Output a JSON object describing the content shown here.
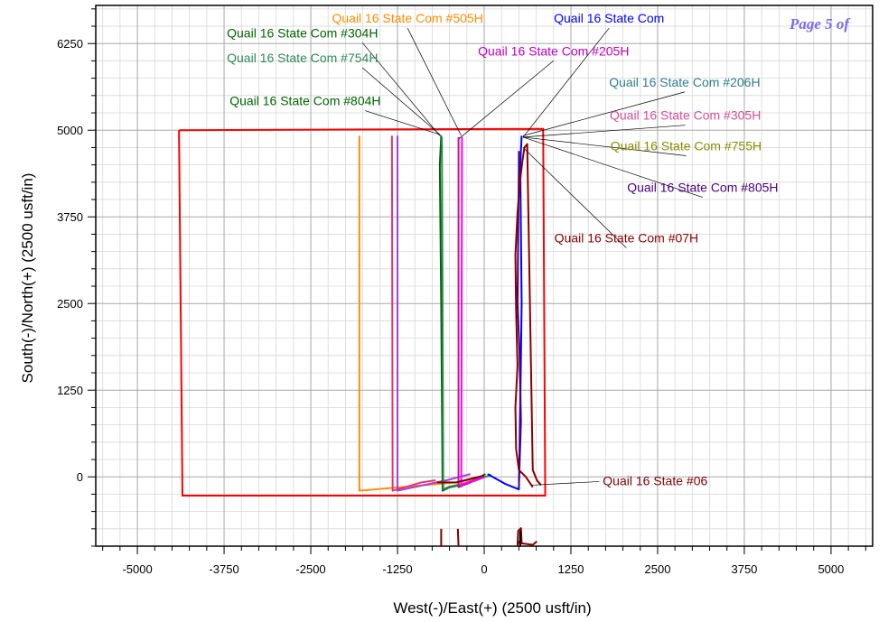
{
  "page_marker": "Page 5 of",
  "chart_data": {
    "type": "line",
    "title": "",
    "xlabel": "West(-)/East(+) (2500 usft/in)",
    "ylabel": "South(-)/North(+) (2500 usft/in)",
    "xlim": [
      -5600,
      5600
    ],
    "ylim": [
      -1000,
      6800
    ],
    "xticks": [
      -5000,
      -3750,
      -2500,
      -1250,
      0,
      1250,
      2500,
      3750,
      5000
    ],
    "yticks": [
      0,
      1250,
      2500,
      3750,
      5000,
      6250
    ],
    "xtick_labels": [
      "-5000",
      "-3750",
      "-2500",
      "-1250",
      "0",
      "1250",
      "2500",
      "3750",
      "5000"
    ],
    "ytick_labels": [
      "0",
      "1250",
      "2500",
      "3750",
      "5000",
      "6250"
    ],
    "minor_step": 250,
    "grid": true,
    "boundary": {
      "color": "#ff0000",
      "x": [
        -4400,
        850,
        880,
        -4350,
        -4400
      ],
      "y": [
        5000,
        5020,
        -270,
        -270,
        5000
      ]
    },
    "series": [
      {
        "color": "#ff8c00",
        "x": [
          0,
          -400,
          -1800,
          -1800
        ],
        "y": [
          0,
          -80,
          -200,
          4920
        ]
      },
      {
        "color": "#e8336b",
        "x": [
          -700,
          -900,
          -1320,
          -1330
        ],
        "y": [
          -50,
          -80,
          -200,
          4920
        ]
      },
      {
        "color": "#a040e0",
        "x": [
          -200,
          -500,
          -1250,
          -1250
        ],
        "y": [
          40,
          -40,
          -200,
          4920
        ]
      },
      {
        "color": "#006400",
        "x": [
          20,
          -250,
          -500,
          -600,
          -620,
          -640,
          -620
        ],
        "y": [
          40,
          -100,
          -150,
          -200,
          2500,
          4500,
          4920
        ]
      },
      {
        "color": "#2e8b57",
        "x": [
          100,
          -200,
          -500,
          -590,
          -600,
          -610
        ],
        "y": [
          30,
          -80,
          -140,
          -180,
          2500,
          4900
        ]
      },
      {
        "color": "#c71585",
        "x": [
          0,
          -250,
          -370,
          -370
        ],
        "y": [
          0,
          -100,
          -150,
          4900
        ]
      },
      {
        "color": "#ff00ff",
        "x": [
          0,
          -300,
          -330,
          -320
        ],
        "y": [
          0,
          -100,
          -120,
          4900
        ]
      },
      {
        "color": "#800000",
        "x": [
          0,
          -400,
          -680
        ],
        "y": [
          20,
          -80,
          -80
        ]
      },
      {
        "color": "#0000ff",
        "x": [
          50,
          300,
          500,
          520,
          540,
          530,
          520,
          540
        ],
        "y": [
          40,
          -100,
          -180,
          1000,
          2500,
          3500,
          4500,
          4920
        ]
      },
      {
        "color": "#4b0082",
        "x": [
          500,
          530,
          510,
          480,
          490,
          500,
          500
        ],
        "y": [
          -150,
          800,
          1800,
          2500,
          3500,
          4500,
          4700
        ]
      },
      {
        "color": "#8b0000",
        "x": [
          700,
          600,
          500,
          460,
          450,
          480,
          460,
          450,
          480,
          510,
          550,
          580,
          620,
          700,
          760,
          820
        ],
        "y": [
          -150,
          0,
          100,
          400,
          1000,
          1600,
          2400,
          3200,
          3800,
          4200,
          4550,
          4750,
          4800,
          100,
          -50,
          -120
        ]
      },
      {
        "color": "#800000",
        "x": [
          -620,
          -620
        ],
        "y": [
          -750,
          -1000
        ]
      },
      {
        "color": "#800000",
        "x": [
          -380,
          -370
        ],
        "y": [
          -750,
          -1000
        ]
      },
      {
        "color": "#800000",
        "x": [
          500,
          480,
          490,
          530,
          540,
          700,
          760
        ],
        "y": [
          -920,
          -1000,
          -780,
          -740,
          -960,
          -980,
          -930
        ]
      },
      {
        "color": "#000000",
        "x": [
          520,
          520
        ],
        "y": [
          -1000,
          -780
        ]
      }
    ],
    "annotations": [
      {
        "text": "Quail 16 State Com #304H",
        "color": "#006400",
        "label_x": -3710,
        "label_y": 6340,
        "anchor": "start",
        "target_x": -640,
        "target_y": 4920
      },
      {
        "text": "Quail 16 State Com #505H",
        "color": "#ff8c00",
        "label_x": -1105,
        "label_y": 6550,
        "anchor": "middle",
        "target_x": -330,
        "target_y": 4920
      },
      {
        "text": "Quail 16 State Com #754H",
        "color": "#2e8b57",
        "label_x": -3710,
        "label_y": 5980,
        "anchor": "start",
        "target_x": -620,
        "target_y": 4920
      },
      {
        "text": "Quail 16 State Com #804H",
        "color": "#006400",
        "label_x": -3670,
        "label_y": 5360,
        "anchor": "start",
        "target_x": -650,
        "target_y": 4940
      },
      {
        "text": "Quail 16 State Com #205H",
        "color": "#c000c0",
        "label_x": 1000,
        "label_y": 6080,
        "anchor": "middle",
        "target_x": -360,
        "target_y": 4880
      },
      {
        "text": "Quail 16 State Com",
        "color": "#0000ff",
        "label_x": 1800,
        "label_y": 6550,
        "anchor": "middle",
        "target_x": 560,
        "target_y": 4900
      },
      {
        "text": "Quail 16 State Com #206H",
        "color": "#2f7f8f",
        "label_x": 2890,
        "label_y": 5630,
        "anchor": "middle",
        "target_x": 560,
        "target_y": 4920
      },
      {
        "text": "Quail 16 State Com #305H",
        "color": "#d4509e",
        "label_x": 2900,
        "label_y": 5150,
        "anchor": "middle",
        "target_x": 560,
        "target_y": 4900
      },
      {
        "text": "Quail 16 State Com #755H",
        "color": "#8b8b00",
        "label_x": 2910,
        "label_y": 4710,
        "anchor": "middle",
        "target_x": 560,
        "target_y": 4900
      },
      {
        "text": "Quail 16 State Com #805H",
        "color": "#4b0082",
        "label_x": 3150,
        "label_y": 4110,
        "anchor": "middle",
        "target_x": 560,
        "target_y": 4900
      },
      {
        "text": "Quail 16 State Com #07H",
        "color": "#8b0000",
        "label_x": 2050,
        "label_y": 3380,
        "anchor": "middle",
        "target_x": 560,
        "target_y": 4750
      },
      {
        "text": "Quail 16 State #06",
        "color": "#800000",
        "label_x": 1710,
        "label_y": -120,
        "anchor": "start",
        "target_x": 680,
        "target_y": -120
      }
    ]
  }
}
